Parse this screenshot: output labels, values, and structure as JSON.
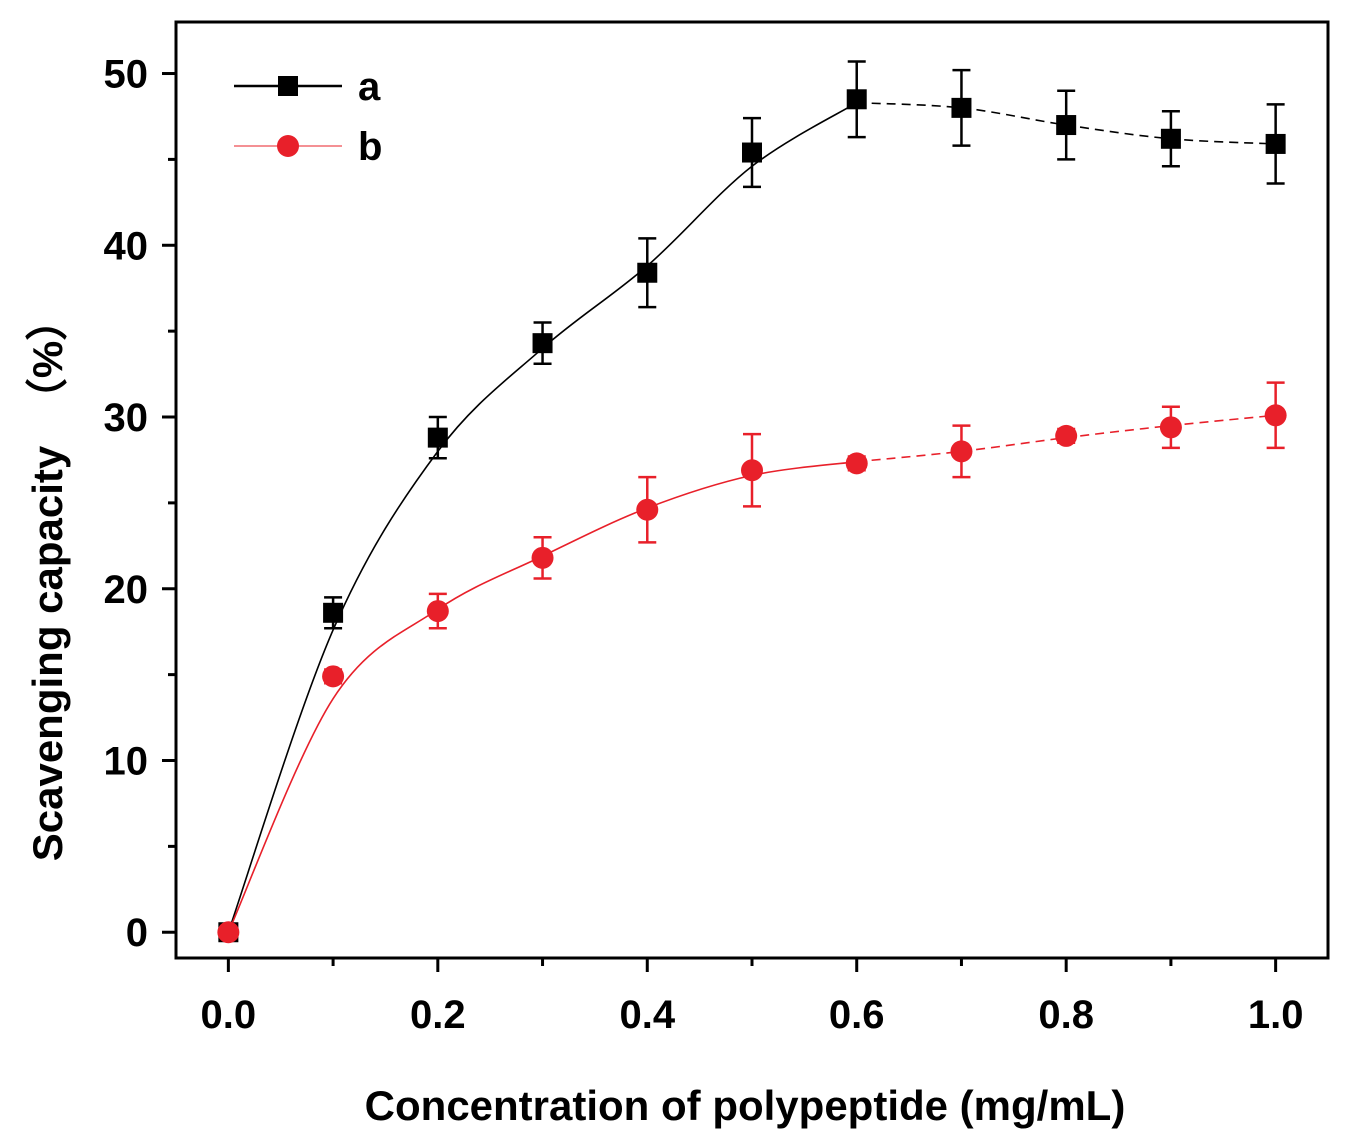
{
  "chart_data": {
    "type": "line",
    "title": "",
    "xlabel": "Concentration of polypeptide (mg/mL)",
    "ylabel": "Scavenging capacity",
    "ylabel_unit": "（%）",
    "xlim": [
      -0.05,
      1.05
    ],
    "ylim": [
      -1.5,
      53
    ],
    "xticks": [
      0.0,
      0.2,
      0.4,
      0.6,
      0.8,
      1.0
    ],
    "xtick_labels": [
      "0.0",
      "0.2",
      "0.4",
      "0.6",
      "0.8",
      "1.0"
    ],
    "yticks": [
      0,
      10,
      20,
      30,
      40,
      50
    ],
    "ytick_labels": [
      "0",
      "10",
      "20",
      "30",
      "40",
      "50"
    ],
    "grid": false,
    "legend_position": "top-left",
    "x": [
      0.0,
      0.1,
      0.2,
      0.3,
      0.4,
      0.5,
      0.6,
      0.7,
      0.8,
      0.9,
      1.0
    ],
    "series": [
      {
        "name": "a",
        "marker": "square",
        "color": "#000000",
        "values": [
          0,
          18.6,
          28.8,
          34.3,
          38.4,
          45.4,
          48.5,
          48.0,
          47.0,
          46.2,
          45.9
        ],
        "errors": [
          0,
          0.9,
          1.2,
          1.2,
          2.0,
          2.0,
          2.2,
          2.2,
          2.0,
          1.6,
          2.3
        ],
        "fit_values": [
          0,
          17.6,
          28.0,
          34.0,
          38.8,
          44.6,
          48.3,
          48.0,
          47.0,
          46.2,
          45.9
        ]
      },
      {
        "name": "b",
        "marker": "circle",
        "color": "#e8202a",
        "values": [
          0,
          14.9,
          18.7,
          21.8,
          24.6,
          26.9,
          27.3,
          28.0,
          28.9,
          29.4,
          30.1
        ],
        "errors": [
          0,
          0.4,
          1.0,
          1.2,
          1.9,
          2.1,
          0.4,
          1.5,
          0.4,
          1.2,
          1.9
        ],
        "fit_values": [
          0,
          13.6,
          18.8,
          21.9,
          24.7,
          26.6,
          27.4,
          28.0,
          28.8,
          29.5,
          30.1
        ]
      }
    ]
  }
}
